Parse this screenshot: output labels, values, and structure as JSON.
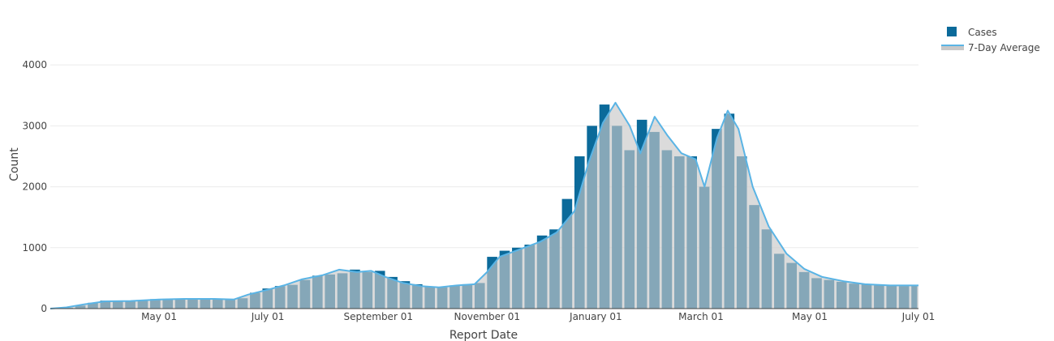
{
  "chart_data": {
    "type": "bar",
    "xlabel": "Report Date",
    "ylabel": "Count",
    "x_range": [
      "2020-03-01",
      "2021-07-01"
    ],
    "ylim": [
      0,
      4800
    ],
    "y_ticks": [
      0,
      1000,
      2000,
      3000,
      4000
    ],
    "x_ticks": [
      {
        "date": "2020-05-01",
        "label": "May 01"
      },
      {
        "date": "2020-07-01",
        "label": "July 01"
      },
      {
        "date": "2020-09-01",
        "label": "September 01"
      },
      {
        "date": "2020-11-01",
        "label": "November 01"
      },
      {
        "date": "2021-01-01",
        "label": "January 01"
      },
      {
        "date": "2021-03-01",
        "label": "March 01"
      },
      {
        "date": "2021-05-01",
        "label": "May 01"
      },
      {
        "date": "2021-07-01",
        "label": "July 01"
      }
    ],
    "grid": true,
    "legend_position": "top-right",
    "series": [
      {
        "name": "Cases",
        "kind": "bar",
        "color": "#0b6a9a",
        "points": [
          [
            "2020-03-01",
            0
          ],
          [
            "2020-03-08",
            15
          ],
          [
            "2020-03-15",
            50
          ],
          [
            "2020-03-22",
            95
          ],
          [
            "2020-03-29",
            130
          ],
          [
            "2020-04-05",
            120
          ],
          [
            "2020-04-12",
            125
          ],
          [
            "2020-04-19",
            140
          ],
          [
            "2020-04-26",
            155
          ],
          [
            "2020-05-03",
            160
          ],
          [
            "2020-05-10",
            165
          ],
          [
            "2020-05-17",
            165
          ],
          [
            "2020-05-24",
            170
          ],
          [
            "2020-05-31",
            165
          ],
          [
            "2020-06-07",
            160
          ],
          [
            "2020-06-14",
            170
          ],
          [
            "2020-06-21",
            260
          ],
          [
            "2020-06-28",
            330
          ],
          [
            "2020-07-05",
            370
          ],
          [
            "2020-07-12",
            390
          ],
          [
            "2020-07-19",
            470
          ],
          [
            "2020-07-26",
            540
          ],
          [
            "2020-08-02",
            560
          ],
          [
            "2020-08-09",
            580
          ],
          [
            "2020-08-16",
            640
          ],
          [
            "2020-08-23",
            600
          ],
          [
            "2020-08-30",
            620
          ],
          [
            "2020-09-06",
            520
          ],
          [
            "2020-09-13",
            450
          ],
          [
            "2020-09-20",
            400
          ],
          [
            "2020-09-27",
            360
          ],
          [
            "2020-10-04",
            350
          ],
          [
            "2020-10-11",
            380
          ],
          [
            "2020-10-18",
            400
          ],
          [
            "2020-10-25",
            420
          ],
          [
            "2020-11-01",
            850
          ],
          [
            "2020-11-08",
            950
          ],
          [
            "2020-11-15",
            1000
          ],
          [
            "2020-11-22",
            1050
          ],
          [
            "2020-11-29",
            1200
          ],
          [
            "2020-12-06",
            1300
          ],
          [
            "2020-12-13",
            1800
          ],
          [
            "2020-12-20",
            2500
          ],
          [
            "2020-12-27",
            3000
          ],
          [
            "2021-01-03",
            3350
          ],
          [
            "2021-01-10",
            3000
          ],
          [
            "2021-01-17",
            2600
          ],
          [
            "2021-01-24",
            3100
          ],
          [
            "2021-01-31",
            2900
          ],
          [
            "2021-02-07",
            2600
          ],
          [
            "2021-02-14",
            2500
          ],
          [
            "2021-02-21",
            2500
          ],
          [
            "2021-02-28",
            2000
          ],
          [
            "2021-03-07",
            2950
          ],
          [
            "2021-03-14",
            3200
          ],
          [
            "2021-03-21",
            2500
          ],
          [
            "2021-03-28",
            1700
          ],
          [
            "2021-04-04",
            1300
          ],
          [
            "2021-04-11",
            900
          ],
          [
            "2021-04-18",
            750
          ],
          [
            "2021-04-25",
            600
          ],
          [
            "2021-05-02",
            500
          ],
          [
            "2021-05-09",
            470
          ],
          [
            "2021-05-16",
            440
          ],
          [
            "2021-05-23",
            410
          ],
          [
            "2021-05-30",
            400
          ],
          [
            "2021-06-06",
            380
          ],
          [
            "2021-06-13",
            390
          ],
          [
            "2021-06-20",
            370
          ],
          [
            "2021-06-27",
            380
          ]
        ]
      },
      {
        "name": "7-Day Average",
        "kind": "area",
        "line_color": "#5ab4e5",
        "fill_color": "#c8c8c8",
        "points": [
          [
            "2020-03-01",
            0
          ],
          [
            "2020-03-10",
            20
          ],
          [
            "2020-03-20",
            70
          ],
          [
            "2020-04-01",
            120
          ],
          [
            "2020-04-15",
            125
          ],
          [
            "2020-05-01",
            150
          ],
          [
            "2020-05-15",
            160
          ],
          [
            "2020-06-01",
            160
          ],
          [
            "2020-06-12",
            150
          ],
          [
            "2020-06-20",
            230
          ],
          [
            "2020-07-01",
            310
          ],
          [
            "2020-07-10",
            380
          ],
          [
            "2020-07-20",
            480
          ],
          [
            "2020-08-01",
            550
          ],
          [
            "2020-08-10",
            640
          ],
          [
            "2020-08-20",
            600
          ],
          [
            "2020-08-28",
            620
          ],
          [
            "2020-09-05",
            520
          ],
          [
            "2020-09-15",
            420
          ],
          [
            "2020-09-25",
            370
          ],
          [
            "2020-10-05",
            350
          ],
          [
            "2020-10-15",
            380
          ],
          [
            "2020-10-25",
            400
          ],
          [
            "2020-11-01",
            600
          ],
          [
            "2020-11-08",
            850
          ],
          [
            "2020-11-20",
            980
          ],
          [
            "2020-12-01",
            1100
          ],
          [
            "2020-12-10",
            1250
          ],
          [
            "2020-12-20",
            1600
          ],
          [
            "2020-12-28",
            2400
          ],
          [
            "2021-01-05",
            3050
          ],
          [
            "2021-01-12",
            3380
          ],
          [
            "2021-01-20",
            3000
          ],
          [
            "2021-01-26",
            2550
          ],
          [
            "2021-02-03",
            3150
          ],
          [
            "2021-02-10",
            2850
          ],
          [
            "2021-02-18",
            2550
          ],
          [
            "2021-02-26",
            2450
          ],
          [
            "2021-03-03",
            2000
          ],
          [
            "2021-03-10",
            2800
          ],
          [
            "2021-03-16",
            3250
          ],
          [
            "2021-03-22",
            2950
          ],
          [
            "2021-03-30",
            2000
          ],
          [
            "2021-04-08",
            1350
          ],
          [
            "2021-04-18",
            900
          ],
          [
            "2021-04-28",
            650
          ],
          [
            "2021-05-08",
            520
          ],
          [
            "2021-05-20",
            450
          ],
          [
            "2021-06-01",
            400
          ],
          [
            "2021-06-15",
            380
          ],
          [
            "2021-06-30",
            380
          ],
          [
            "2021-07-01",
            380
          ]
        ]
      }
    ]
  }
}
